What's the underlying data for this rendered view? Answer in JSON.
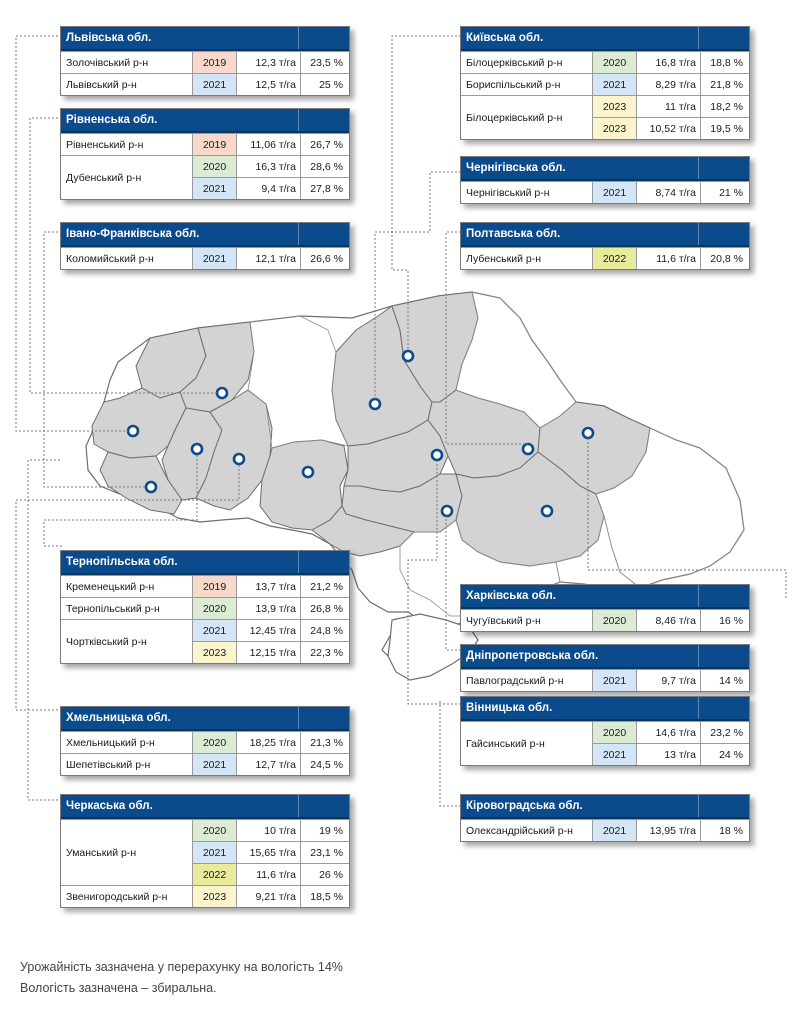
{
  "colors": {
    "header": "#0b4a8b",
    "region_fill": "#d3d3d3",
    "marker": "#0b4a8b",
    "year_2019": "#f9d8cc",
    "year_2020": "#dcebd4",
    "year_2021": "#d4e6f6",
    "year_2022": "#e8ec9a",
    "year_2023": "#fbf4cc"
  },
  "tables": [
    {
      "id": "lviv",
      "region": "Львівська обл.",
      "groups": [
        {
          "district": "Золочівський р-н",
          "rows": [
            {
              "year": "2019",
              "yield": "12,3 т/га",
              "moisture": "23,5 %"
            }
          ]
        },
        {
          "district": "Львівський р-н",
          "rows": [
            {
              "year": "2021",
              "yield": "12,5 т/га",
              "moisture": "25 %"
            }
          ]
        }
      ]
    },
    {
      "id": "rivne",
      "region": "Рівненська обл.",
      "groups": [
        {
          "district": "Рівненський р-н",
          "rows": [
            {
              "year": "2019",
              "yield": "11,06 т/га",
              "moisture": "26,7 %"
            }
          ]
        },
        {
          "district": "Дубенський р-н",
          "rows": [
            {
              "year": "2020",
              "yield": "16,3 т/га",
              "moisture": "28,6 %"
            },
            {
              "year": "2021",
              "yield": "9,4 т/га",
              "moisture": "27,8 %"
            }
          ]
        }
      ]
    },
    {
      "id": "ivano",
      "region": "Івано-Франківська обл.",
      "groups": [
        {
          "district": "Коломийський р-н",
          "rows": [
            {
              "year": "2021",
              "yield": "12,1 т/га",
              "moisture": "26,6 %"
            }
          ]
        }
      ]
    },
    {
      "id": "kyiv",
      "region": "Київська обл.",
      "groups": [
        {
          "district": "Білоцерківський р-н",
          "rows": [
            {
              "year": "2020",
              "yield": "16,8 т/га",
              "moisture": "18,8 %"
            }
          ]
        },
        {
          "district": "Бориспільський р-н",
          "rows": [
            {
              "year": "2021",
              "yield": "8,29 т/га",
              "moisture": "21,8 %"
            }
          ]
        },
        {
          "district": "Білоцерківський р-н",
          "rows": [
            {
              "year": "2023",
              "yield": "11 т/га",
              "moisture": "18,2 %"
            },
            {
              "year": "2023",
              "yield": "10,52 т/га",
              "moisture": "19,5 %"
            }
          ]
        }
      ]
    },
    {
      "id": "chernihiv",
      "region": "Чернігівська обл.",
      "groups": [
        {
          "district": "Чернігівський р-н",
          "rows": [
            {
              "year": "2021",
              "yield": "8,74 т/га",
              "moisture": "21 %"
            }
          ]
        }
      ]
    },
    {
      "id": "poltava",
      "region": "Полтавська обл.",
      "groups": [
        {
          "district": "Лубенський р-н",
          "rows": [
            {
              "year": "2022",
              "yield": "11,6 т/га",
              "moisture": "20,8 %"
            }
          ]
        }
      ]
    },
    {
      "id": "ternopil",
      "region": "Тернопільська обл.",
      "groups": [
        {
          "district": "Кременецький р-н",
          "rows": [
            {
              "year": "2019",
              "yield": "13,7 т/га",
              "moisture": "21,2 %"
            }
          ]
        },
        {
          "district": "Тернопільський р-н",
          "rows": [
            {
              "year": "2020",
              "yield": "13,9 т/га",
              "moisture": "26,8 %"
            }
          ]
        },
        {
          "district": "Чортківський р-н",
          "rows": [
            {
              "year": "2021",
              "yield": "12,45 т/га",
              "moisture": "24,8 %"
            },
            {
              "year": "2023",
              "yield": "12,15 т/га",
              "moisture": "22,3 %"
            }
          ]
        }
      ]
    },
    {
      "id": "khmelnytskyi",
      "region": "Хмельницька обл.",
      "groups": [
        {
          "district": "Хмельницький р-н",
          "rows": [
            {
              "year": "2020",
              "yield": "18,25 т/га",
              "moisture": "21,3 %"
            }
          ]
        },
        {
          "district": "Шепетівський р-н",
          "rows": [
            {
              "year": "2021",
              "yield": "12,7 т/га",
              "moisture": "24,5 %"
            }
          ]
        }
      ]
    },
    {
      "id": "cherkasy",
      "region": "Черкаська обл.",
      "groups": [
        {
          "district": "Уманський р-н",
          "rows": [
            {
              "year": "2020",
              "yield": "10 т/га",
              "moisture": "19 %"
            },
            {
              "year": "2021",
              "yield": "15,65 т/га",
              "moisture": "23,1 %"
            },
            {
              "year": "2022",
              "yield": "11,6 т/га",
              "moisture": "26 %"
            }
          ]
        },
        {
          "district": "Звенигородський р-н",
          "rows": [
            {
              "year": "2023",
              "yield": "9,21 т/га",
              "moisture": "18,5 %"
            }
          ]
        }
      ]
    },
    {
      "id": "kharkiv",
      "region": "Харківська обл.",
      "groups": [
        {
          "district": "Чугуївський р-н",
          "rows": [
            {
              "year": "2020",
              "yield": "8,46 т/га",
              "moisture": "16 %"
            }
          ]
        }
      ]
    },
    {
      "id": "dnipro",
      "region": "Дніпропетровська обл.",
      "groups": [
        {
          "district": "Павлоградський р-н",
          "rows": [
            {
              "year": "2021",
              "yield": "9,7 т/га",
              "moisture": "14 %"
            }
          ]
        }
      ]
    },
    {
      "id": "vinnytsia",
      "region": "Вінницька обл.",
      "groups": [
        {
          "district": "Гайсинський р-н",
          "rows": [
            {
              "year": "2020",
              "yield": "14,6 т/га",
              "moisture": "23,2 %"
            },
            {
              "year": "2021",
              "yield": "13 т/га",
              "moisture": "24 %"
            }
          ]
        }
      ]
    },
    {
      "id": "kirovohrad",
      "region": "Кіровоградська обл.",
      "groups": [
        {
          "district": "Олександрійський р-н",
          "rows": [
            {
              "year": "2021",
              "yield": "13,95 т/га",
              "moisture": "18 %"
            }
          ]
        }
      ]
    }
  ],
  "notes": {
    "line1": "Урожайність зазначена у перерахунку на вологість 14%",
    "line2": "Вологість зазначена – збиральна."
  }
}
